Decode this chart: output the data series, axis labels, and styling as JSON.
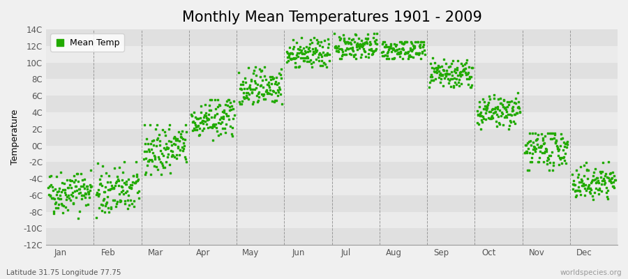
{
  "title": "Monthly Mean Temperatures 1901 - 2009",
  "ylabel": "Temperature",
  "xlabel_bottom_left": "Latitude 31.75 Longitude 77.75",
  "xlabel_bottom_right": "worldspecies.org",
  "legend_label": "Mean Temp",
  "dot_color": "#22aa00",
  "background_color": "#f0f0f0",
  "plot_bg_color": "#f0f0f0",
  "stripe_color_dark": "#e0e0e0",
  "stripe_color_light": "#ebebeb",
  "ylim": [
    -12,
    14
  ],
  "yticks": [
    -12,
    -10,
    -8,
    -6,
    -4,
    -2,
    0,
    2,
    4,
    6,
    8,
    10,
    12,
    14
  ],
  "ytick_labels": [
    "-12C",
    "-10C",
    "-8C",
    "-6C",
    "-4C",
    "-2C",
    "0C",
    "2C",
    "4C",
    "6C",
    "8C",
    "10C",
    "12C",
    "14C"
  ],
  "months": [
    "Jan",
    "Feb",
    "Mar",
    "Apr",
    "May",
    "Jun",
    "Jul",
    "Aug",
    "Sep",
    "Oct",
    "Nov",
    "Dec"
  ],
  "n_years": 109,
  "start_year": 1901,
  "monthly_params": [
    {
      "mean": -5.5,
      "std": 1.3,
      "lo": -9.0,
      "hi": -3.0,
      "trend": 0.005
    },
    {
      "mean": -5.5,
      "std": 1.5,
      "lo": -10.5,
      "hi": -2.0,
      "trend": 0.006
    },
    {
      "mean": -0.5,
      "std": 1.5,
      "lo": -3.5,
      "hi": 2.5,
      "trend": 0.007
    },
    {
      "mean": 3.2,
      "std": 1.2,
      "lo": 0.5,
      "hi": 5.5,
      "trend": 0.007
    },
    {
      "mean": 7.2,
      "std": 1.2,
      "lo": 5.0,
      "hi": 9.5,
      "trend": 0.006
    },
    {
      "mean": 11.0,
      "std": 0.9,
      "lo": 9.5,
      "hi": 13.0,
      "trend": 0.004
    },
    {
      "mean": 12.0,
      "std": 0.8,
      "lo": 10.5,
      "hi": 13.5,
      "trend": 0.003
    },
    {
      "mean": 11.5,
      "std": 0.8,
      "lo": 10.5,
      "hi": 12.5,
      "trend": 0.003
    },
    {
      "mean": 8.5,
      "std": 0.9,
      "lo": 7.0,
      "hi": 11.5,
      "trend": 0.004
    },
    {
      "mean": 4.0,
      "std": 1.0,
      "lo": 2.0,
      "hi": 6.5,
      "trend": 0.005
    },
    {
      "mean": -0.5,
      "std": 1.2,
      "lo": -3.0,
      "hi": 1.5,
      "trend": 0.006
    },
    {
      "mean": -4.5,
      "std": 1.0,
      "lo": -7.0,
      "hi": -2.0,
      "trend": 0.006
    }
  ],
  "marker_size": 2.5,
  "grid_color": "#999999",
  "title_fontsize": 15,
  "axis_fontsize": 9,
  "tick_fontsize": 8.5
}
